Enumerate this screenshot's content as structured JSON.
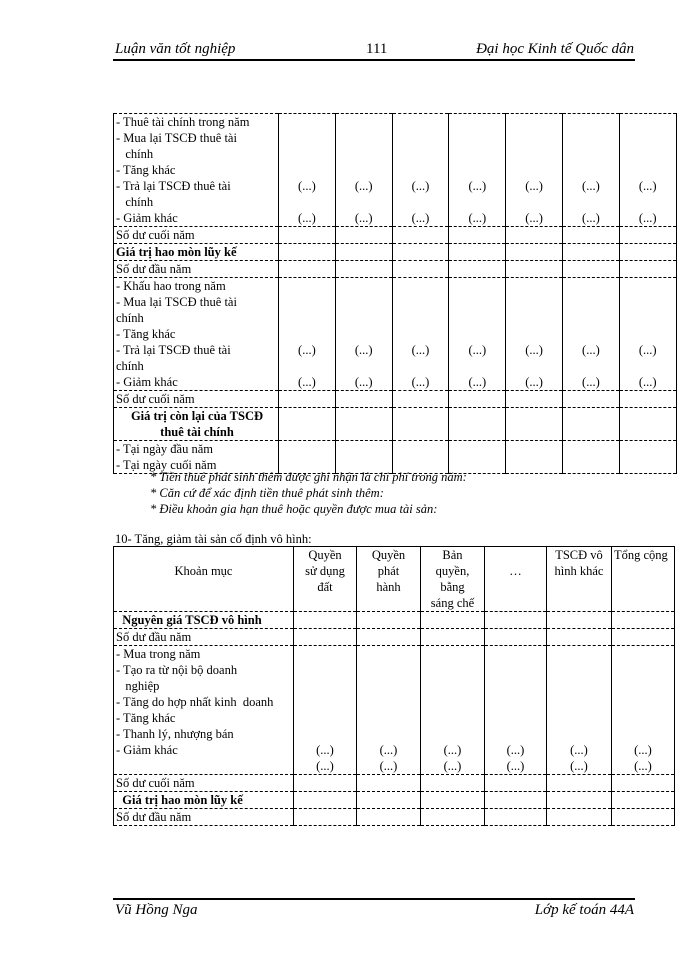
{
  "header": {
    "left": "Luận văn tốt nghiệp",
    "page_number": "111",
    "right": "Đại học Kinh tế Quốc dân"
  },
  "footer": {
    "left": "Vũ Hồng Nga",
    "right": "Lớp kế toán 44A"
  },
  "table1": {
    "value_columns": 7,
    "rows": [
      {
        "lines": [
          "- Thuê tài chính trong năm",
          "- Mua lại TSCĐ thuê tài",
          "   chính",
          "- Tăng khác",
          "- Trả lại TSCĐ thuê tài",
          "   chính",
          "- Giảm khác"
        ],
        "values": [
          "",
          "",
          "",
          "",
          "(...)",
          "",
          "(...)"
        ]
      },
      {
        "lines": [
          "Số dư cuối năm"
        ]
      },
      {
        "lines": [
          "Giá trị hao mòn lũy kế"
        ],
        "bold": true
      },
      {
        "lines": [
          "Số dư đầu năm"
        ]
      },
      {
        "lines": [
          "- Khấu hao trong năm",
          "- Mua lại TSCĐ thuê tài",
          "chính",
          "- Tăng khác",
          "- Trả lại TSCĐ thuê tài",
          "chính",
          "- Giảm khác"
        ],
        "values": [
          "",
          "",
          "",
          "",
          "(...)",
          "",
          "(...)"
        ]
      },
      {
        "lines": [
          "Số dư cuối năm"
        ]
      },
      {
        "lines": [
          "Giá trị còn lại của TSCĐ",
          "thuê tài chính"
        ],
        "bold": true,
        "center": true
      },
      {
        "lines": [
          "- Tại ngày đầu năm",
          "- Tại ngày cuối năm"
        ]
      }
    ]
  },
  "notes": [
    "* Tiền thuê phát sinh thêm được ghi nhận là chi phí trong năm:",
    "* Căn cứ để xác định tiền thuê phát sinh thêm:",
    "* Điều khoản gia hạn thuê hoặc quyền được mua tài sản:"
  ],
  "section10": {
    "title": "10- Tăng, giảm tài sản cố định vô hình:",
    "headers": [
      [
        "",
        "Khoản mục"
      ],
      [
        "Quyền",
        "sử dụng",
        "đất"
      ],
      [
        "Quyền",
        "phát",
        "hành"
      ],
      [
        "Bản",
        "quyền,",
        "bằng",
        "sáng chế"
      ],
      [
        "",
        "…"
      ],
      [
        "TSCĐ vô",
        "hình  khác"
      ],
      [
        "Tổng cộng"
      ]
    ],
    "rows": [
      {
        "lines": [
          "  Nguyên giá TSCĐ vô hình"
        ],
        "bold": true
      },
      {
        "lines": [
          "Số dư đầu năm"
        ]
      },
      {
        "lines": [
          "- Mua trong năm",
          "- Tạo ra từ nội bộ doanh",
          "   nghiệp",
          "- Tăng do hợp nhất kinh  doanh",
          "- Tăng khác",
          "- Thanh lý, nhượng bán",
          "- Giảm khác",
          ""
        ],
        "values": [
          "",
          "",
          "",
          "",
          "",
          "",
          "(...)",
          "(...)"
        ]
      },
      {
        "lines": [
          "Số dư cuối năm"
        ]
      },
      {
        "lines": [
          "  Giá trị hao mòn lũy kế"
        ],
        "bold": true
      },
      {
        "lines": [
          "Số dư đầu năm"
        ]
      }
    ]
  }
}
